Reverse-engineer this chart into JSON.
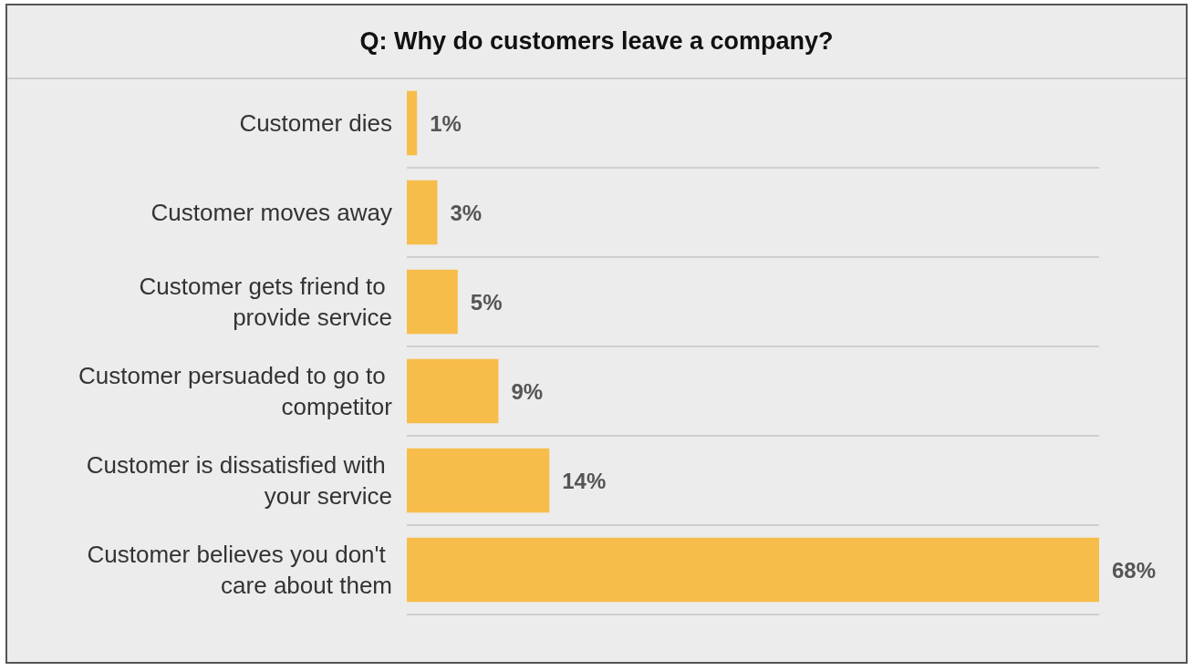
{
  "chart_data": {
    "type": "bar",
    "orientation": "horizontal",
    "title": "Q: Why do customers leave a company?",
    "categories": [
      "Customer dies",
      "Customer moves away",
      "Customer gets friend to provide service",
      "Customer persuaded to go to competitor",
      "Customer is dissatisfied with your service",
      "Customer believes you don't care about them"
    ],
    "values": [
      1,
      3,
      5,
      9,
      14,
      68
    ],
    "color": "#f7bd4a",
    "value_labels": [
      "1%",
      "3%",
      "5%",
      "9%",
      "14%",
      "68%"
    ],
    "grid": false
  }
}
